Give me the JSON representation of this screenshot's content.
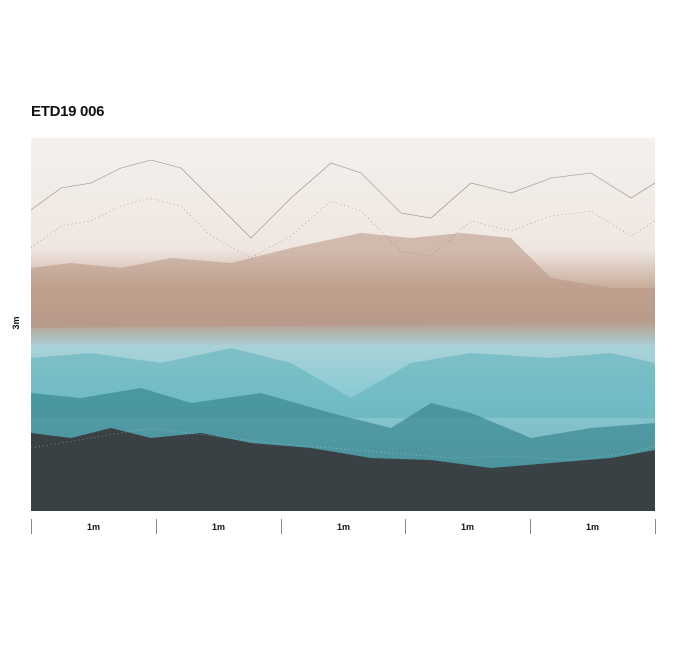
{
  "product": {
    "code": "ETD19 006",
    "height_label": "3m",
    "width_segments": [
      "1m",
      "1m",
      "1m",
      "1m",
      "1m"
    ]
  },
  "colors": {
    "sky": "#f3efec",
    "sand": "#b89a88",
    "aqua": "#9fd3dc",
    "teal": "#3f8d95",
    "charcoal": "#3b4246"
  }
}
